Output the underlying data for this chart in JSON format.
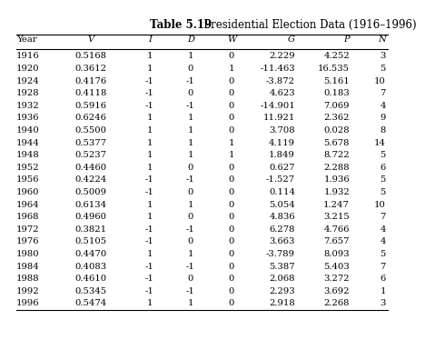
{
  "title_bold": "Table 5.19",
  "title_normal": "   Presidential Election Data (1916–1996)",
  "columns": [
    "Year",
    "V",
    "I",
    "D",
    "W",
    "G",
    "P",
    "N"
  ],
  "col_italic": [
    false,
    true,
    true,
    true,
    true,
    true,
    true,
    true
  ],
  "col_align": [
    "left",
    "center",
    "center",
    "center",
    "center",
    "right",
    "right",
    "right"
  ],
  "rows": [
    [
      "1916",
      "0.5168",
      "1",
      "1",
      "0",
      "2.229",
      "4.252",
      "3"
    ],
    [
      "1920",
      "0.3612",
      "1",
      "0",
      "1",
      "-11.463",
      "16.535",
      "5"
    ],
    [
      "1924",
      "0.4176",
      "-1",
      "-1",
      "0",
      "-3.872",
      "5.161",
      "10"
    ],
    [
      "1928",
      "0.4118",
      "-1",
      "0",
      "0",
      "4.623",
      "0.183",
      "7"
    ],
    [
      "1932",
      "0.5916",
      "-1",
      "-1",
      "0",
      "-14.901",
      "7.069",
      "4"
    ],
    [
      "1936",
      "0.6246",
      "1",
      "1",
      "0",
      "11.921",
      "2.362",
      "9"
    ],
    [
      "1940",
      "0.5500",
      "1",
      "1",
      "0",
      "3.708",
      "0.028",
      "8"
    ],
    [
      "1944",
      "0.5377",
      "1",
      "1",
      "1",
      "4.119",
      "5.678",
      "14"
    ],
    [
      "1948",
      "0.5237",
      "1",
      "1",
      "1",
      "1.849",
      "8.722",
      "5"
    ],
    [
      "1952",
      "0.4460",
      "1",
      "0",
      "0",
      "0.627",
      "2.288",
      "6"
    ],
    [
      "1956",
      "0.4224",
      "-1",
      "-1",
      "0",
      "-1.527",
      "1.936",
      "5"
    ],
    [
      "1960",
      "0.5009",
      "-1",
      "0",
      "0",
      "0.114",
      "1.932",
      "5"
    ],
    [
      "1964",
      "0.6134",
      "1",
      "1",
      "0",
      "5.054",
      "1.247",
      "10"
    ],
    [
      "1968",
      "0.4960",
      "1",
      "0",
      "0",
      "4.836",
      "3.215",
      "7"
    ],
    [
      "1972",
      "0.3821",
      "-1",
      "-1",
      "0",
      "6.278",
      "4.766",
      "4"
    ],
    [
      "1976",
      "0.5105",
      "-1",
      "0",
      "0",
      "3.663",
      "7.657",
      "4"
    ],
    [
      "1980",
      "0.4470",
      "1",
      "1",
      "0",
      "-3.789",
      "8.093",
      "5"
    ],
    [
      "1984",
      "0.4083",
      "-1",
      "-1",
      "0",
      "5.387",
      "5.403",
      "7"
    ],
    [
      "1988",
      "0.4610",
      "-1",
      "0",
      "0",
      "2.068",
      "3.272",
      "6"
    ],
    [
      "1992",
      "0.5345",
      "-1",
      "-1",
      "0",
      "2.293",
      "3.692",
      "1"
    ],
    [
      "1996",
      "0.5474",
      "1",
      "1",
      "0",
      "2.918",
      "2.268",
      "3"
    ]
  ],
  "background_color": "#ffffff",
  "line_color": "#000000",
  "text_color": "#000000",
  "font_size": 7.2,
  "title_font_size": 8.5
}
